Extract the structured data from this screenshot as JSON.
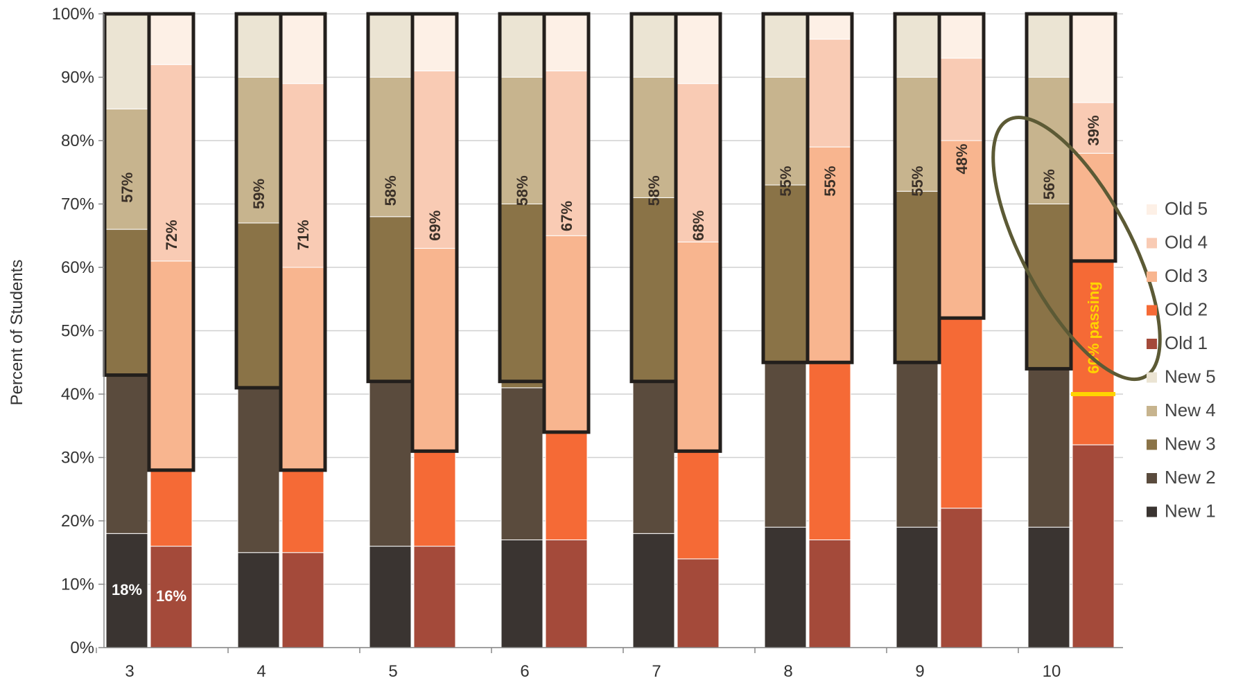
{
  "chart_data": {
    "type": "bar",
    "stacked": true,
    "title": "",
    "xlabel": "",
    "ylabel": "Percent of Students",
    "ylim": [
      0,
      100
    ],
    "yticks": [
      "0%",
      "10%",
      "20%",
      "30%",
      "40%",
      "50%",
      "60%",
      "70%",
      "80%",
      "90%",
      "100%"
    ],
    "grid": true,
    "legend_position": "right",
    "categories": [
      "3",
      "4",
      "5",
      "6",
      "7",
      "8",
      "9",
      "10"
    ],
    "legend": [
      "Old 5",
      "Old 4",
      "Old 3",
      "Old 2",
      "Old 1",
      "New 5",
      "New 4",
      "New 3",
      "New 2",
      "New 1"
    ],
    "colors": {
      "New 1": "#3a3431",
      "New 2": "#5a4b3d",
      "New 3": "#8a7347",
      "New 4": "#c7b48e",
      "New 5": "#ebe4d3",
      "Old 1": "#a44a3a",
      "Old 2": "#f56a36",
      "Old 3": "#f8b58f",
      "Old 4": "#f9cbb4",
      "Old 5": "#fdf0e6"
    },
    "new_series": [
      {
        "name": "New 1",
        "values": [
          18,
          15,
          16,
          17,
          18,
          19,
          19,
          19
        ]
      },
      {
        "name": "New 2",
        "values": [
          25,
          26,
          26,
          24,
          24,
          26,
          26,
          25
        ]
      },
      {
        "name": "New 3",
        "values": [
          23,
          26,
          26,
          29,
          29,
          28,
          27,
          26
        ]
      },
      {
        "name": "New 4",
        "values": [
          19,
          23,
          22,
          20,
          19,
          17,
          18,
          20
        ]
      },
      {
        "name": "New 5",
        "values": [
          15,
          10,
          10,
          10,
          10,
          10,
          10,
          10
        ]
      }
    ],
    "old_series": [
      {
        "name": "Old 1",
        "values": [
          16,
          15,
          16,
          17,
          14,
          17,
          22,
          32
        ]
      },
      {
        "name": "Old 2",
        "values": [
          12,
          13,
          15,
          17,
          17,
          28,
          30,
          29
        ]
      },
      {
        "name": "Old 3",
        "values": [
          33,
          32,
          32,
          31,
          33,
          34,
          28,
          17
        ]
      },
      {
        "name": "Old 4",
        "values": [
          31,
          29,
          28,
          26,
          25,
          17,
          13,
          8
        ]
      },
      {
        "name": "Old 5",
        "values": [
          8,
          11,
          9,
          9,
          11,
          4,
          7,
          14
        ]
      }
    ],
    "new_boxed_labels": [
      "57%",
      "59%",
      "58%",
      "58%",
      "58%",
      "55%",
      "55%",
      "56%"
    ],
    "old_boxed_labels": [
      "72%",
      "71%",
      "69%",
      "67%",
      "68%",
      "55%",
      "48%",
      "39%"
    ],
    "new_box_bottom": [
      43,
      41,
      42,
      42,
      42,
      45,
      45,
      44
    ],
    "old_box_bottom": [
      28,
      28,
      31,
      34,
      31,
      45,
      52,
      61
    ],
    "annotations": {
      "new1_first_label": "18%",
      "old1_first_label": "16%",
      "passing_label": "60% passing",
      "passing_level": 40
    }
  }
}
